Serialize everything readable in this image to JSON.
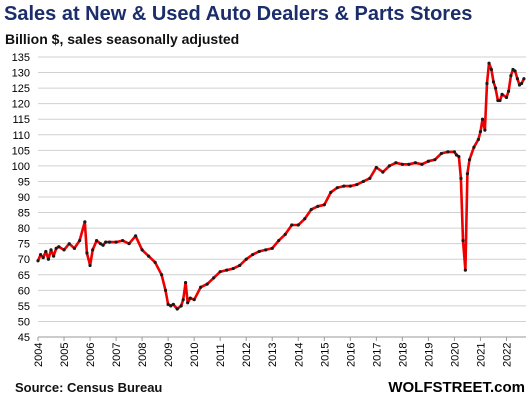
{
  "header": {
    "title": "Sales at New & Used Auto Dealers & Parts Stores",
    "subtitle": "Billion $, sales seasonally adjusted"
  },
  "footer": {
    "source": "Source: Census Bureau",
    "brand": "WOLFSTREET.com"
  },
  "colors": {
    "line": "#ee0000",
    "marker": "#1a1a1a",
    "grid": "#d0d0d0",
    "title": "#1c2d6b"
  },
  "chart_data": {
    "type": "line",
    "title": "Sales at New & Used Auto Dealers & Parts Stores",
    "subtitle": "Billion $, sales seasonally adjusted",
    "xlabel": "",
    "ylabel": "",
    "ylim": [
      45,
      135
    ],
    "xlim": [
      2004.0,
      2022.75
    ],
    "y_ticks": [
      45,
      50,
      55,
      60,
      65,
      70,
      75,
      80,
      85,
      90,
      95,
      100,
      105,
      110,
      115,
      120,
      125,
      130,
      135
    ],
    "x_tick_labels": [
      "2004",
      "2005",
      "2006",
      "2007",
      "2008",
      "2009",
      "2010",
      "2011",
      "2012",
      "2013",
      "2014",
      "2015",
      "2016",
      "2017",
      "2018",
      "2019",
      "2020",
      "2021",
      "2022"
    ],
    "grid": "horizontal",
    "legend": "none",
    "series": [
      {
        "x": [
          2004.0,
          2004.1,
          2004.2,
          2004.3,
          2004.4,
          2004.5,
          2004.6,
          2004.7,
          2004.8,
          2005.0,
          2005.2,
          2005.4,
          2005.6,
          2005.8,
          2005.88,
          2006.0,
          2006.1,
          2006.25,
          2006.4,
          2006.5,
          2006.6,
          2006.75,
          2007.0,
          2007.25,
          2007.5,
          2007.75,
          2008.0,
          2008.25,
          2008.5,
          2008.75,
          2008.9,
          2009.0,
          2009.1,
          2009.2,
          2009.35,
          2009.5,
          2009.58,
          2009.67,
          2009.75,
          2009.85,
          2010.0,
          2010.25,
          2010.5,
          2010.75,
          2011.0,
          2011.25,
          2011.5,
          2011.75,
          2012.0,
          2012.25,
          2012.5,
          2012.75,
          2013.0,
          2013.25,
          2013.5,
          2013.75,
          2014.0,
          2014.25,
          2014.5,
          2014.75,
          2015.0,
          2015.25,
          2015.5,
          2015.75,
          2016.0,
          2016.25,
          2016.5,
          2016.75,
          2017.0,
          2017.25,
          2017.5,
          2017.75,
          2018.0,
          2018.25,
          2018.5,
          2018.75,
          2019.0,
          2019.25,
          2019.5,
          2019.75,
          2020.0,
          2020.08,
          2020.17,
          2020.25,
          2020.33,
          2020.42,
          2020.5,
          2020.58,
          2020.75,
          2020.92,
          2021.0,
          2021.08,
          2021.17,
          2021.25,
          2021.33,
          2021.42,
          2021.5,
          2021.58,
          2021.67,
          2021.75,
          2021.83,
          2022.0,
          2022.08,
          2022.17,
          2022.25,
          2022.33,
          2022.42,
          2022.5,
          2022.58,
          2022.67
        ],
        "values": [
          69.5,
          71.5,
          70.5,
          72.5,
          70,
          73,
          71,
          73.5,
          74,
          73,
          75,
          73.5,
          76,
          82,
          72,
          68,
          73,
          76,
          75,
          74.5,
          75.5,
          75.5,
          75.5,
          76,
          75,
          77.5,
          73,
          71,
          69,
          65,
          60,
          55.5,
          55,
          55.5,
          54,
          55,
          57,
          62.5,
          56,
          57.5,
          57,
          61,
          62,
          64,
          66,
          66.5,
          67,
          68,
          70,
          71.5,
          72.5,
          73,
          73.5,
          76,
          78,
          81,
          81,
          83,
          86,
          87,
          87.5,
          91.5,
          93,
          93.5,
          93.5,
          94,
          95,
          96,
          99.5,
          98,
          100,
          101,
          100.5,
          100.5,
          101,
          100.5,
          101.5,
          102,
          104,
          104.5,
          104.5,
          103.5,
          103,
          96,
          76,
          66.5,
          97.5,
          102,
          106,
          108.5,
          111,
          115,
          111.5,
          126.5,
          133,
          131,
          127,
          125,
          121,
          121,
          123,
          122,
          124,
          129,
          131,
          130.5,
          128,
          126,
          126.5,
          128
        ]
      }
    ]
  }
}
